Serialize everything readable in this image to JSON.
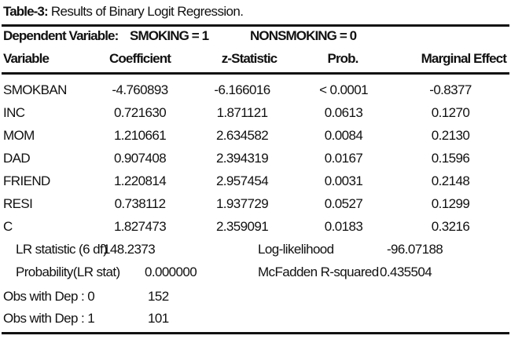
{
  "caption": {
    "label": "Table-3:",
    "text": "Results of Binary Logit Regression."
  },
  "dependent": {
    "label": "Dependent Variable:",
    "smoking": "SMOKING = 1",
    "nonsmoking": "NONSMOKING = 0"
  },
  "columns": [
    "Variable",
    "Coefficient",
    "z-Statistic",
    "Prob.",
    "Marginal Effect"
  ],
  "rows": [
    [
      "SMOKBAN",
      "-4.760893",
      "-6.166016",
      "< 0.0001",
      "-0.8377"
    ],
    [
      "INC",
      "0.721630",
      "1.871121",
      "0.0613",
      "0.1270"
    ],
    [
      "MOM",
      "1.210661",
      "2.634582",
      "0.0084",
      "0.2130"
    ],
    [
      "DAD",
      "0.907408",
      "2.394319",
      "0.0167",
      "0.1596"
    ],
    [
      "FRIEND",
      "1.220814",
      "2.957454",
      "0.0031",
      "0.2148"
    ],
    [
      "RESI",
      "0.738112",
      "1.937729",
      "0.0527",
      "0.1299"
    ],
    [
      "C",
      "1.827473",
      "2.359091",
      "0.0183",
      "0.3216"
    ]
  ],
  "stats": {
    "lr_label": "LR statistic (6 df)",
    "lr_value": "148.2373",
    "loglik_label": "Log-likelihood",
    "loglik_value": "-96.07188",
    "prob_label": "Probability(LR stat)",
    "prob_value": "0.000000",
    "mcf_label": "McFadden R-squared",
    "mcf_value": "0.435504",
    "obs0_label": "Obs with Dep : 0",
    "obs0_value": "152",
    "obs1_label": "Obs with Dep : 1",
    "obs1_value": "101"
  }
}
